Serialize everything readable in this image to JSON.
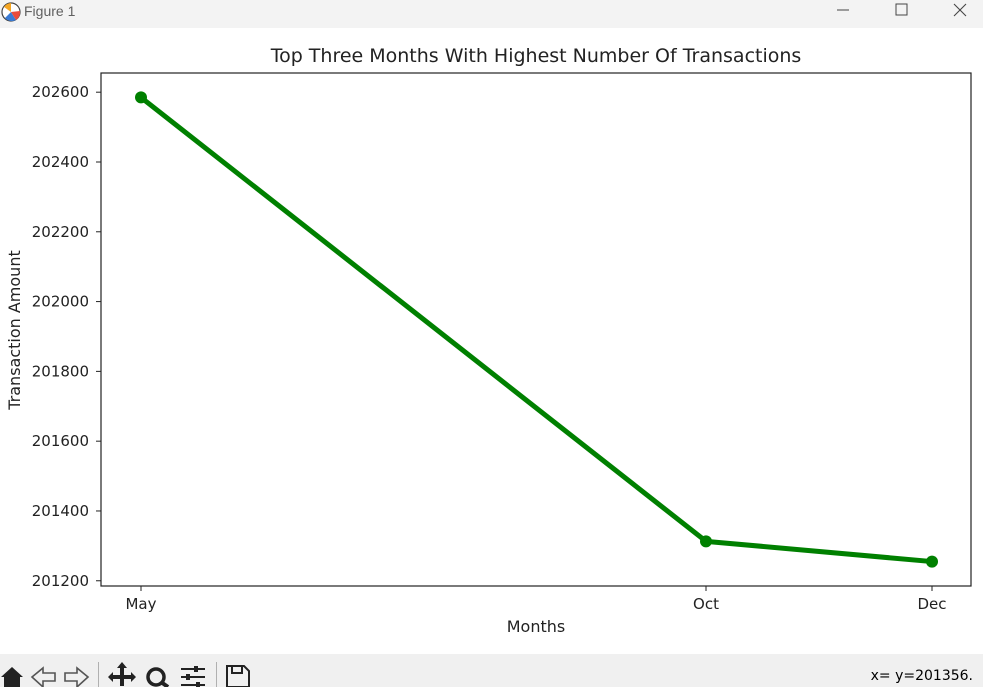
{
  "window": {
    "title": "Figure 1",
    "icons": [
      "matplotlib-icon",
      "minimize-icon",
      "maximize-icon",
      "close-icon"
    ]
  },
  "toolbar": {
    "tools": [
      "home-icon",
      "back-icon",
      "forward-icon",
      "pan-icon",
      "zoom-icon",
      "configure-subplots-icon",
      "save-icon"
    ],
    "coordinates": "x= y=201356."
  },
  "chart_data": {
    "type": "line",
    "title": "Top Three Months With Highest Number Of Transactions",
    "xlabel": "Months",
    "ylabel": "Transaction Amount",
    "categories": [
      "May",
      "Oct",
      "Dec"
    ],
    "values": [
      202585,
      201313,
      201255
    ],
    "ylim": [
      201185,
      202655
    ],
    "yticks": [
      201200,
      201400,
      201600,
      201800,
      202000,
      202200,
      202400,
      202600
    ],
    "color": "#008000",
    "marker": "circle",
    "grid": false
  }
}
